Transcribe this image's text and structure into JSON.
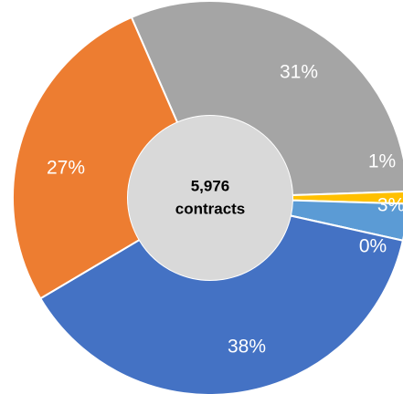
{
  "chart_data": {
    "type": "donut",
    "values": [
      31,
      1,
      3,
      0,
      38,
      27
    ],
    "value_labels": [
      "31%",
      "1%",
      "3%",
      "0%",
      "38%",
      "27%"
    ],
    "colors": [
      "#a5a5a5",
      "#ffc000",
      "#5b9bd5",
      "#70ad47",
      "#4472c4",
      "#ed7d31"
    ],
    "center_label": {
      "value": 5976,
      "label": "5,976"
    },
    "center_caption": "contracts"
  }
}
